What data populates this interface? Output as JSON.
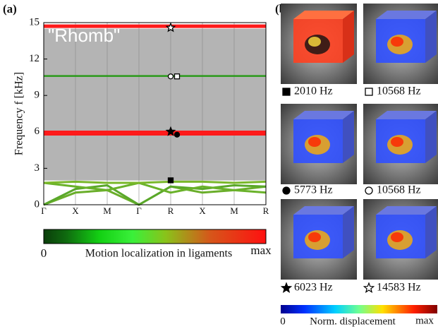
{
  "chart_data": {
    "type": "band",
    "panel_label": "(a)",
    "annotation": "\"Rhomb\"",
    "ylabel": "Frequency f [kHz]",
    "categories": [
      "Γ",
      "X",
      "M",
      "Γ",
      "R",
      "X",
      "M",
      "R"
    ],
    "ylim": [
      0,
      15
    ],
    "yticks": [
      0,
      3,
      6,
      9,
      12,
      15
    ],
    "band_gap": [
      2.0,
      14.5
    ],
    "gap_color": "#b4b4b4",
    "bands": [
      {
        "color": "#ff1a1a",
        "width": 7,
        "values": [
          5.9,
          5.9,
          5.9,
          5.9,
          5.9,
          5.9,
          5.9,
          5.9
        ]
      },
      {
        "color": "#ff1a1a",
        "width": 5,
        "values": [
          14.7,
          14.7,
          14.7,
          14.7,
          14.7,
          14.7,
          14.7,
          14.7
        ]
      },
      {
        "color": "#2a9a1a",
        "width": 2.5,
        "values": [
          10.6,
          10.6,
          10.6,
          10.6,
          10.6,
          10.6,
          10.6,
          10.6
        ]
      },
      {
        "color": "#6aae2a",
        "width": 3,
        "values": [
          0,
          1.0,
          1.2,
          0,
          1.5,
          1.0,
          1.2,
          1.5
        ]
      },
      {
        "color": "#5aa82a",
        "width": 3,
        "values": [
          0,
          1.3,
          1.6,
          0,
          1.5,
          1.3,
          1.6,
          1.5
        ]
      },
      {
        "color": "#6ab22a",
        "width": 3,
        "values": [
          1.8,
          1.5,
          1.2,
          1.8,
          1.0,
          1.5,
          1.2,
          1.0
        ]
      },
      {
        "color": "#7ab82a",
        "width": 3,
        "values": [
          1.8,
          1.9,
          1.8,
          1.8,
          1.9,
          1.9,
          1.8,
          1.9
        ]
      }
    ],
    "markers": [
      {
        "symbol": "square",
        "filled": true,
        "x": 4,
        "value": 2.01
      },
      {
        "symbol": "circle",
        "filled": true,
        "x": 4.2,
        "value": 5.773
      },
      {
        "symbol": "star",
        "filled": true,
        "x": 4,
        "value": 6.023
      },
      {
        "symbol": "circle",
        "filled": false,
        "x": 4,
        "value": 10.568
      },
      {
        "symbol": "square",
        "filled": false,
        "x": 4.2,
        "value": 10.568
      },
      {
        "symbol": "star",
        "filled": false,
        "x": 4,
        "value": 14.583
      }
    ],
    "colorbar": {
      "min_label": "0",
      "label": "Motion localization in ligaments",
      "max_label": "max"
    }
  },
  "panel_b": {
    "panel_label": "(b)",
    "modes": [
      {
        "caption": "2010 Hz"
      },
      {
        "caption": "10568 Hz"
      },
      {
        "caption": "5773 Hz"
      },
      {
        "caption": "10568 Hz"
      },
      {
        "caption": "6023 Hz"
      },
      {
        "caption": "14583 Hz"
      }
    ],
    "colorbar": {
      "min_label": "0",
      "label": "Norm. displacement",
      "max_label": "max"
    }
  }
}
